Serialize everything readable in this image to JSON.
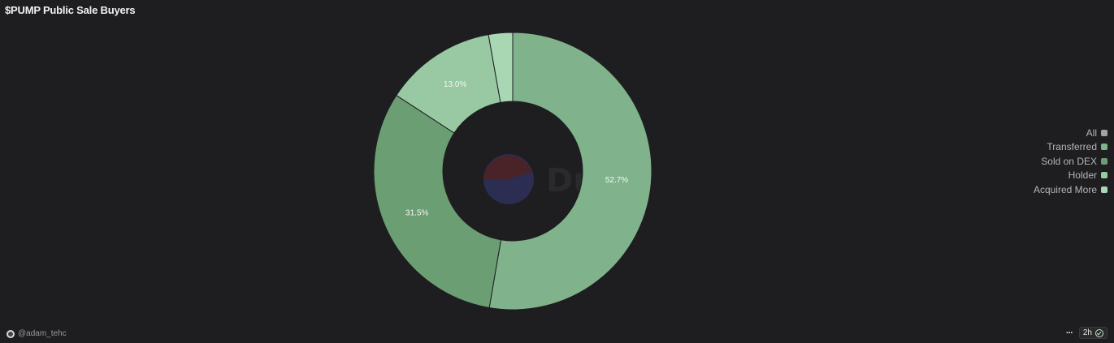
{
  "title": "$PUMP Public Sale Buyers",
  "watermark": "Dune",
  "chart_data": {
    "type": "pie",
    "donut": true,
    "title": "$PUMP Public Sale Buyers",
    "series": [
      {
        "name": "Transferred",
        "value": 52.7,
        "color": "#80b38c",
        "label": "52.7%"
      },
      {
        "name": "Sold on DEX",
        "value": 31.5,
        "color": "#6b9e73",
        "label": "31.5%"
      },
      {
        "name": "Holder",
        "value": 13.0,
        "color": "#98c9a2",
        "label": "13.0%"
      },
      {
        "name": "Acquired More",
        "value": 2.8,
        "color": "#a9d7b3",
        "label": ""
      }
    ],
    "legend": {
      "placement": "right",
      "items": [
        {
          "name": "All",
          "color": "#a2a2a6"
        },
        {
          "name": "Transferred",
          "color": "#80b38c"
        },
        {
          "name": "Sold on DEX",
          "color": "#6b9e73"
        },
        {
          "name": "Holder",
          "color": "#98c9a2"
        },
        {
          "name": "Acquired More",
          "color": "#a9d7b3"
        }
      ]
    }
  },
  "footer": {
    "author": "@adam_tehc",
    "more_label": "···",
    "age": "2h"
  }
}
